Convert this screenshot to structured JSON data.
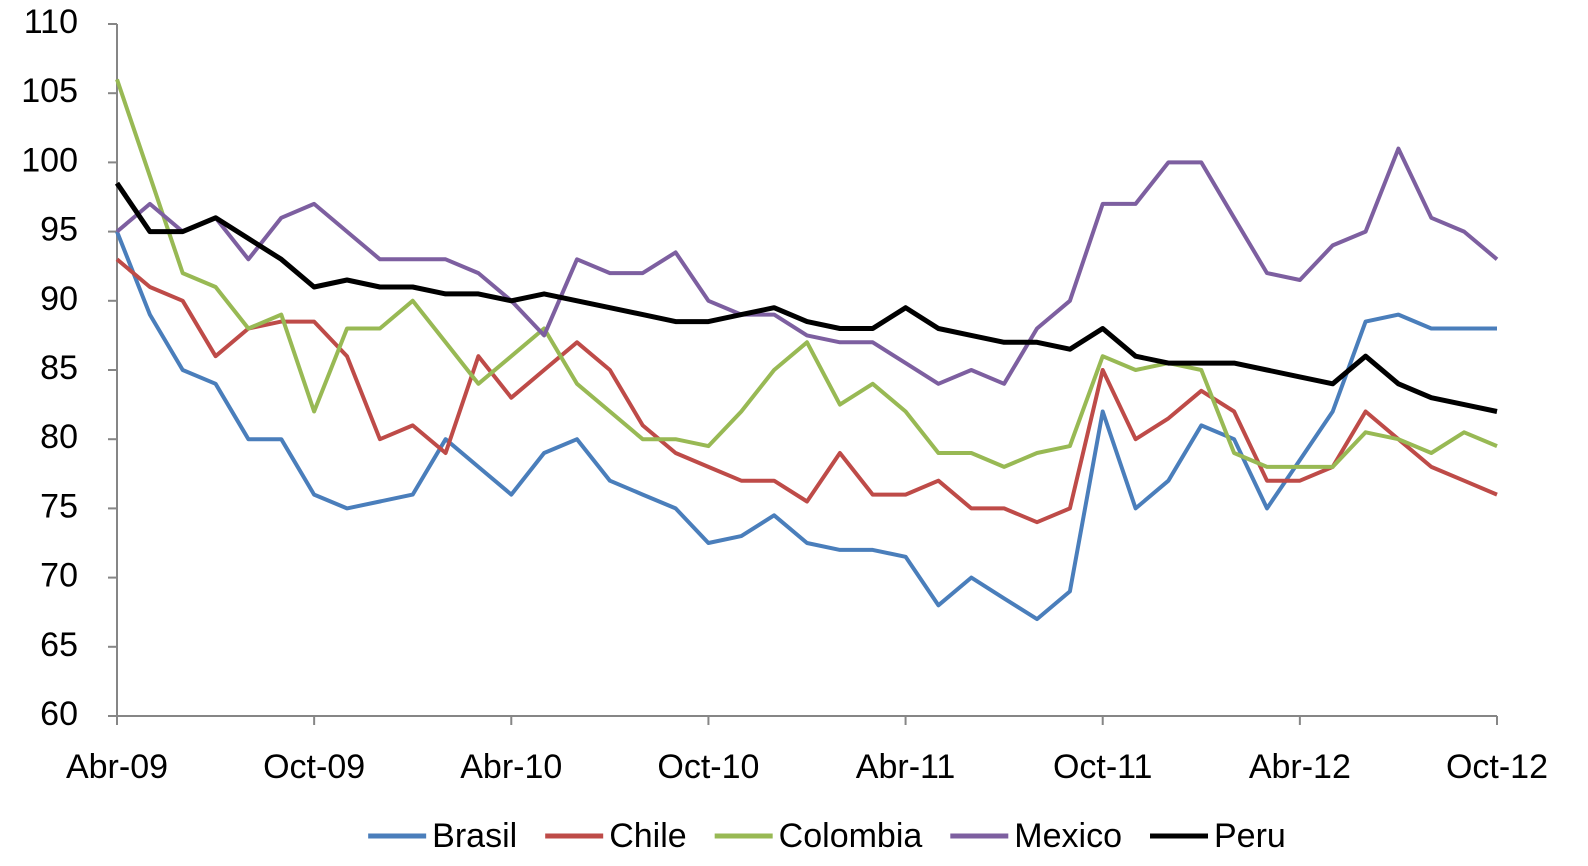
{
  "chart_data": {
    "type": "line",
    "categories": [
      "Abr-09",
      null,
      null,
      null,
      null,
      null,
      "Oct-09",
      null,
      null,
      null,
      null,
      null,
      "Abr-10",
      null,
      null,
      null,
      null,
      null,
      "Oct-10",
      null,
      null,
      null,
      null,
      null,
      "Abr-11",
      null,
      null,
      null,
      null,
      null,
      "Oct-11",
      null,
      null,
      null,
      null,
      null,
      "Abr-12",
      null,
      null,
      null,
      null,
      null,
      "Oct-12"
    ],
    "series": [
      {
        "name": "Brasil",
        "color": "#4a7ebb",
        "values": [
          95,
          89,
          85,
          84,
          80,
          80,
          76,
          75,
          75.5,
          76,
          80,
          78,
          76,
          79,
          80,
          77,
          76,
          75,
          72.5,
          73,
          74.5,
          72.5,
          72,
          72,
          71.5,
          68,
          70,
          68.5,
          67,
          69,
          82,
          75,
          77,
          81,
          80,
          75,
          78.5,
          82,
          88.5,
          89,
          88,
          88,
          88
        ]
      },
      {
        "name": "Chile",
        "color": "#be4b48",
        "values": [
          93,
          91,
          90,
          86,
          88,
          88.5,
          88.5,
          86,
          80,
          81,
          79,
          86,
          83,
          85,
          87,
          85,
          81,
          79,
          78,
          77,
          77,
          75.5,
          79,
          76,
          76,
          77,
          75,
          75,
          74,
          75,
          85,
          80,
          81.5,
          83.5,
          82,
          77,
          77,
          78,
          82,
          80,
          78,
          77,
          76
        ]
      },
      {
        "name": "Colombia",
        "color": "#98b954",
        "values": [
          106,
          99,
          92,
          91,
          88,
          89,
          82,
          88,
          88,
          90,
          87,
          84,
          86,
          88,
          84,
          82,
          80,
          80,
          79.5,
          82,
          85,
          87,
          82.5,
          84,
          82,
          79,
          79,
          78,
          79,
          79.5,
          86,
          85,
          85.5,
          85,
          79,
          78,
          78,
          78,
          80.5,
          80,
          79,
          80.5,
          79.5
        ]
      },
      {
        "name": "Mexico",
        "color": "#7d5fa0",
        "values": [
          95,
          97,
          95,
          96,
          93,
          96,
          97,
          95,
          93,
          93,
          93,
          92,
          90,
          87.5,
          93,
          92,
          92,
          93.5,
          90,
          89,
          89,
          87.5,
          87,
          87,
          85.5,
          84,
          85,
          84,
          88,
          90,
          97,
          97,
          100,
          100,
          96,
          92,
          91.5,
          94,
          95,
          101,
          96,
          95,
          93
        ]
      },
      {
        "name": "Peru",
        "color": "#000000",
        "values": [
          98.5,
          95,
          95,
          96,
          94.5,
          93,
          91,
          91.5,
          91,
          91,
          90.5,
          90.5,
          90,
          90.5,
          90,
          89.5,
          89,
          88.5,
          88.5,
          89,
          89.5,
          88.5,
          88,
          88,
          89.5,
          88,
          87.5,
          87,
          87,
          86.5,
          88,
          86,
          85.5,
          85.5,
          85.5,
          85,
          84.5,
          84,
          86,
          84,
          83,
          82.5,
          82
        ]
      }
    ],
    "ylim": [
      60,
      110
    ],
    "yticks": [
      60,
      65,
      70,
      75,
      80,
      85,
      90,
      95,
      100,
      105,
      110
    ],
    "grid": false,
    "legend": "bottom"
  }
}
